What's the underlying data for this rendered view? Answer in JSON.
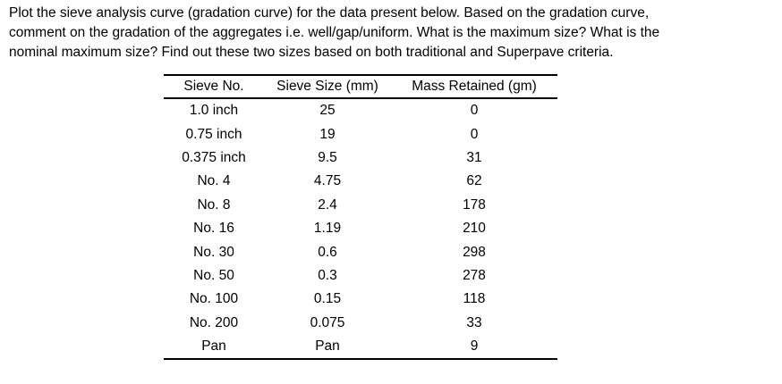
{
  "question": {
    "lines": [
      "Plot the sieve analysis curve (gradation curve) for the data present below. Based on the gradation curve,",
      "comment on the gradation of the aggregates i.e. well/gap/uniform. What is the maximum size? What is the",
      "nominal maximum size? Find out these two sizes based on both traditional and Superpave criteria."
    ]
  },
  "table": {
    "headers": [
      "Sieve No.",
      "Sieve Size (mm)",
      "Mass Retained (gm)"
    ],
    "rows": [
      [
        "1.0 inch",
        "25",
        "0"
      ],
      [
        "0.75 inch",
        "19",
        "0"
      ],
      [
        "0.375 inch",
        "9.5",
        "31"
      ],
      [
        "No. 4",
        "4.75",
        "62"
      ],
      [
        "No. 8",
        "2.4",
        "178"
      ],
      [
        "No. 16",
        "1.19",
        "210"
      ],
      [
        "No. 30",
        "0.6",
        "298"
      ],
      [
        "No. 50",
        "0.3",
        "278"
      ],
      [
        "No. 100",
        "0.15",
        "118"
      ],
      [
        "No. 200",
        "0.075",
        "33"
      ],
      [
        "Pan",
        "Pan",
        "9"
      ]
    ]
  },
  "colors": {
    "text": "#000000",
    "background": "#ffffff",
    "rule": "#000000"
  }
}
